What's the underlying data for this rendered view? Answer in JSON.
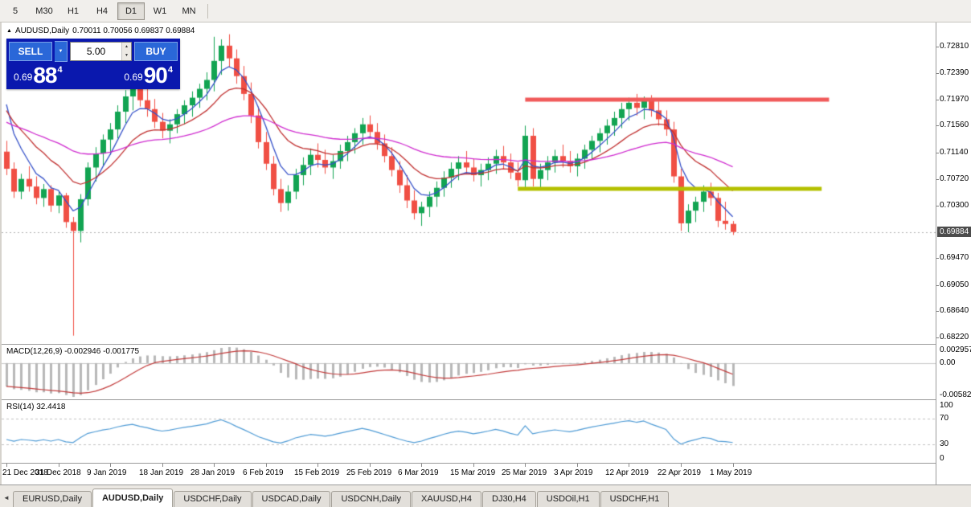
{
  "toolbar": {
    "timeframes": [
      "5",
      "M30",
      "H1",
      "H4",
      "D1",
      "W1",
      "MN"
    ],
    "active": "D1"
  },
  "chart": {
    "title": "AUDUSD,Daily",
    "ohlc_text": "0.70011 0.70056 0.69837 0.69884"
  },
  "trade_panel": {
    "sell_label": "SELL",
    "buy_label": "BUY",
    "volume": "5.00",
    "sell_price": {
      "base": "0.69",
      "big": "88",
      "pip": "4"
    },
    "buy_price": {
      "base": "0.69",
      "big": "90",
      "pip": "4"
    }
  },
  "icons": {
    "chart_marker": "▲",
    "dropdown_arrow": "▼",
    "spinner_up": "▲",
    "spinner_down": "▼",
    "tab_scroll_left": "◄"
  },
  "price_scale": {
    "current": "0.69884"
  },
  "macd": {
    "label": "MACD(12,26,9) -0.002946 -0.001775",
    "scale_labels": [
      "0.002957",
      "0.00",
      "-0.005825"
    ]
  },
  "rsi": {
    "label": "RSI(14) 32.4418",
    "scale_labels": [
      "100",
      "70",
      "30",
      "0"
    ]
  },
  "tabs": {
    "items": [
      "EURUSD,Daily",
      "AUDUSD,Daily",
      "USDCHF,Daily",
      "USDCAD,Daily",
      "USDCNH,Daily",
      "XAUUSD,H4",
      "DJ30,H4",
      "USDOil,H1",
      "USDCHF,H1"
    ],
    "active_index": 1
  },
  "chart_data": {
    "type": "candlestick",
    "symbol": "AUDUSD",
    "timeframe": "Daily",
    "last_candle_ohlc": {
      "open": 0.70011,
      "high": 0.70056,
      "low": 0.69837,
      "close": 0.69884
    },
    "current_price": 0.69884,
    "y_axis": {
      "min": 0.6812,
      "max": 0.7316,
      "tick_labels": [
        "0.72810",
        "0.72390",
        "0.71970",
        "0.71560",
        "0.71140",
        "0.70720",
        "0.70300",
        "0.69470",
        "0.69050",
        "0.68640",
        "0.68220"
      ]
    },
    "x_axis": {
      "tick_every": 7,
      "tick_labels": [
        "21 Dec 2018",
        "31 Dec 2018",
        "9 Jan 2019",
        "18 Jan 2019",
        "28 Jan 2019",
        "6 Feb 2019",
        "15 Feb 2019",
        "25 Feb 2019",
        "6 Mar 2019",
        "15 Mar 2019",
        "25 Mar 2019",
        "3 Apr 2019",
        "12 Apr 2019",
        "22 Apr 2019",
        "1 May 2019"
      ]
    },
    "candle_colors": {
      "up": "#12a452",
      "down": "#f04f44"
    },
    "candles": [
      [
        0.7115,
        0.7132,
        0.7078,
        0.7088
      ],
      [
        0.7088,
        0.7098,
        0.7042,
        0.7052
      ],
      [
        0.7052,
        0.708,
        0.704,
        0.7072
      ],
      [
        0.7072,
        0.7092,
        0.7052,
        0.706
      ],
      [
        0.706,
        0.7076,
        0.7032,
        0.7042
      ],
      [
        0.7042,
        0.7064,
        0.7028,
        0.7056
      ],
      [
        0.7056,
        0.7062,
        0.702,
        0.703
      ],
      [
        0.703,
        0.7052,
        0.7018,
        0.7046
      ],
      [
        0.7046,
        0.705,
        0.6995,
        0.7004
      ],
      [
        0.7004,
        0.7012,
        0.6825,
        0.699
      ],
      [
        0.699,
        0.7048,
        0.6972,
        0.704
      ],
      [
        0.704,
        0.7098,
        0.703,
        0.709
      ],
      [
        0.709,
        0.7122,
        0.7068,
        0.7112
      ],
      [
        0.7112,
        0.7142,
        0.7092,
        0.7134
      ],
      [
        0.7134,
        0.716,
        0.711,
        0.715
      ],
      [
        0.715,
        0.7188,
        0.7136,
        0.7178
      ],
      [
        0.7178,
        0.7212,
        0.716,
        0.7202
      ],
      [
        0.7202,
        0.7226,
        0.718,
        0.7216
      ],
      [
        0.7216,
        0.723,
        0.7186,
        0.7196
      ],
      [
        0.7196,
        0.7218,
        0.717,
        0.7182
      ],
      [
        0.7182,
        0.7198,
        0.7152,
        0.7162
      ],
      [
        0.7162,
        0.7176,
        0.7136,
        0.7148
      ],
      [
        0.7148,
        0.7166,
        0.7128,
        0.7158
      ],
      [
        0.7158,
        0.7182,
        0.7144,
        0.7174
      ],
      [
        0.7174,
        0.7196,
        0.7158,
        0.7188
      ],
      [
        0.7188,
        0.721,
        0.717,
        0.72
      ],
      [
        0.72,
        0.7222,
        0.7184,
        0.7214
      ],
      [
        0.7214,
        0.724,
        0.7196,
        0.7228
      ],
      [
        0.7228,
        0.7296,
        0.721,
        0.7258
      ],
      [
        0.7258,
        0.7292,
        0.7236,
        0.7282
      ],
      [
        0.7282,
        0.73,
        0.7248,
        0.7262
      ],
      [
        0.7262,
        0.7276,
        0.7222,
        0.7234
      ],
      [
        0.7234,
        0.725,
        0.7196,
        0.7206
      ],
      [
        0.7206,
        0.7224,
        0.716,
        0.7172
      ],
      [
        0.7172,
        0.7186,
        0.712,
        0.713
      ],
      [
        0.713,
        0.7146,
        0.7086,
        0.7096
      ],
      [
        0.7096,
        0.7108,
        0.7046,
        0.7056
      ],
      [
        0.7056,
        0.7072,
        0.702,
        0.7034
      ],
      [
        0.7034,
        0.7062,
        0.7022,
        0.7052
      ],
      [
        0.7052,
        0.7088,
        0.704,
        0.7078
      ],
      [
        0.7078,
        0.7106,
        0.7062,
        0.7094
      ],
      [
        0.7094,
        0.712,
        0.7078,
        0.711
      ],
      [
        0.711,
        0.7128,
        0.709,
        0.7102
      ],
      [
        0.7102,
        0.7118,
        0.708,
        0.709
      ],
      [
        0.709,
        0.711,
        0.7072,
        0.71
      ],
      [
        0.71,
        0.7126,
        0.7088,
        0.7116
      ],
      [
        0.7116,
        0.714,
        0.71,
        0.713
      ],
      [
        0.713,
        0.7152,
        0.7112,
        0.7144
      ],
      [
        0.7144,
        0.7168,
        0.7126,
        0.7158
      ],
      [
        0.7158,
        0.7172,
        0.7136,
        0.7146
      ],
      [
        0.7146,
        0.716,
        0.7118,
        0.7128
      ],
      [
        0.7128,
        0.7142,
        0.7098,
        0.7108
      ],
      [
        0.7108,
        0.7122,
        0.7076,
        0.7086
      ],
      [
        0.7086,
        0.71,
        0.705,
        0.7062
      ],
      [
        0.7062,
        0.7078,
        0.7026,
        0.7038
      ],
      [
        0.7038,
        0.7054,
        0.7008,
        0.7018
      ],
      [
        0.7018,
        0.7036,
        0.6998,
        0.7028
      ],
      [
        0.7028,
        0.7052,
        0.7012,
        0.7044
      ],
      [
        0.7044,
        0.7068,
        0.7028,
        0.7058
      ],
      [
        0.7058,
        0.7084,
        0.7044,
        0.7074
      ],
      [
        0.7074,
        0.7098,
        0.7058,
        0.7088
      ],
      [
        0.7088,
        0.7108,
        0.707,
        0.7098
      ],
      [
        0.7098,
        0.7116,
        0.708,
        0.709
      ],
      [
        0.709,
        0.7104,
        0.7068,
        0.7078
      ],
      [
        0.7078,
        0.7096,
        0.706,
        0.7086
      ],
      [
        0.7086,
        0.7106,
        0.707,
        0.7096
      ],
      [
        0.7096,
        0.7118,
        0.708,
        0.7108
      ],
      [
        0.7108,
        0.7124,
        0.7088,
        0.7098
      ],
      [
        0.7098,
        0.7112,
        0.7072,
        0.7082
      ],
      [
        0.7082,
        0.7098,
        0.706,
        0.707
      ],
      [
        0.707,
        0.7156,
        0.7056,
        0.714
      ],
      [
        0.714,
        0.7152,
        0.706,
        0.7072
      ],
      [
        0.7072,
        0.7096,
        0.7056,
        0.7086
      ],
      [
        0.7086,
        0.7108,
        0.707,
        0.7098
      ],
      [
        0.7098,
        0.7118,
        0.7082,
        0.7108
      ],
      [
        0.7108,
        0.7126,
        0.709,
        0.71
      ],
      [
        0.71,
        0.7116,
        0.7082,
        0.7092
      ],
      [
        0.7092,
        0.7112,
        0.7076,
        0.7104
      ],
      [
        0.7104,
        0.7126,
        0.7088,
        0.7118
      ],
      [
        0.7118,
        0.714,
        0.7102,
        0.7132
      ],
      [
        0.7132,
        0.7152,
        0.7114,
        0.7144
      ],
      [
        0.7144,
        0.7166,
        0.7126,
        0.7156
      ],
      [
        0.7156,
        0.7178,
        0.714,
        0.7168
      ],
      [
        0.7168,
        0.7192,
        0.7152,
        0.7182
      ],
      [
        0.7182,
        0.72,
        0.7164,
        0.7192
      ],
      [
        0.7192,
        0.7206,
        0.7172,
        0.7184
      ],
      [
        0.7184,
        0.7202,
        0.7166,
        0.7196
      ],
      [
        0.7196,
        0.7204,
        0.717,
        0.718
      ],
      [
        0.718,
        0.7194,
        0.7156,
        0.7166
      ],
      [
        0.7166,
        0.718,
        0.714,
        0.715
      ],
      [
        0.715,
        0.7162,
        0.7066,
        0.7076
      ],
      [
        0.7076,
        0.7088,
        0.699,
        0.7002
      ],
      [
        0.7002,
        0.7032,
        0.6988,
        0.7022
      ],
      [
        0.7022,
        0.7044,
        0.7004,
        0.7036
      ],
      [
        0.7036,
        0.7062,
        0.702,
        0.7052
      ],
      [
        0.7052,
        0.7066,
        0.703,
        0.7042
      ],
      [
        0.7042,
        0.705,
        0.6996,
        0.7006
      ],
      [
        0.7006,
        0.7036,
        0.6992,
        0.70011
      ],
      [
        0.70011,
        0.70056,
        0.69837,
        0.69884
      ]
    ],
    "moving_averages": [
      {
        "name": "ma-fast",
        "period": 5,
        "seed": 0.724,
        "color": "#3450c8"
      },
      {
        "name": "ma-mid",
        "period": 13,
        "seed": 0.7195,
        "color": "#c03030"
      },
      {
        "name": "ma-slow",
        "period": 40,
        "seed": 0.7165,
        "color": "#cf2bcf"
      }
    ],
    "levels": [
      {
        "name": "resistance",
        "price": 0.7197,
        "start_index": 70,
        "end_index": 111,
        "color": "#f05a5a",
        "width": 5
      },
      {
        "name": "support",
        "price": 0.7056,
        "start_index": 69,
        "end_index": 110,
        "color": "#b4c000",
        "width": 5
      }
    ],
    "macd": {
      "fast": 12,
      "slow": 26,
      "signal": 9,
      "value": -0.002946,
      "signal_value": -0.001775,
      "scale_max": 0.002957,
      "scale_min": -0.005825,
      "seed_fast": 0.7135,
      "seed_slow": 0.7165,
      "histogram_color": "#b8b8b8",
      "signal_color": "#c23b3b"
    },
    "rsi": {
      "period": 14,
      "value": 32.4418,
      "levels": [
        70,
        30
      ],
      "seed_gain": 0.0013,
      "seed_loss": 0.0022,
      "color": "#4f9bd5",
      "scale": [
        100,
        70,
        30,
        0
      ]
    }
  }
}
